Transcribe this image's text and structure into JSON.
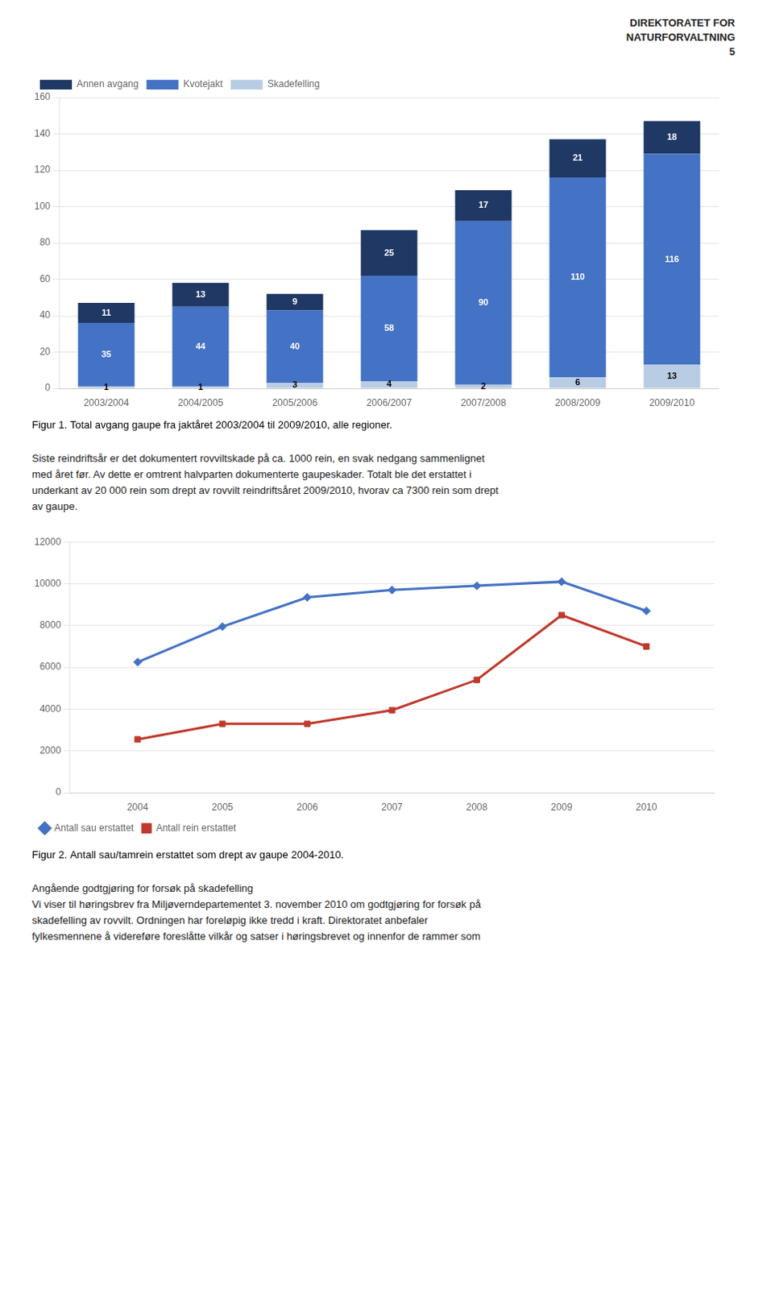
{
  "annotations": [
    "DIREKTORATET FOR",
    "NATURFORVALTNING",
    "5"
  ],
  "chart_data": [
    {
      "type": "bar",
      "title": "Figur 1. Total avgang gaupe fra jaktåret 2003/2004 til 2009/2010, alle regioner.",
      "categories": [
        "2003/2004",
        "2004/2005",
        "2005/2006",
        "2006/2007",
        "2007/2008",
        "2008/2009",
        "2009/2010"
      ],
      "series": [
        {
          "name": "Skadefelling",
          "color": "#b8cce4",
          "values": [
            1,
            1,
            3,
            4,
            2,
            6,
            13
          ]
        },
        {
          "name": "Kvotejakt",
          "color": "#4472c4",
          "values": [
            35,
            44,
            40,
            58,
            90,
            110,
            116
          ]
        },
        {
          "name": "Annen avgang",
          "color": "#1f3864",
          "values": [
            11,
            13,
            9,
            25,
            17,
            21,
            18
          ]
        }
      ],
      "stacked": true,
      "data_labels": true,
      "ylim": [
        0,
        160
      ],
      "yticks": [
        0,
        20,
        40,
        60,
        80,
        100,
        120,
        140,
        160
      ],
      "grid": "y",
      "legend": "upper left",
      "annotations": [
        "Siste reindriftsår er det dokumentert rovviltskade på ca. 1000 rein, en svak nedgang sammenlignet",
        "med året før. Av dette er omtrent halvparten dokumenterte gaupeskader. Totalt ble det erstattet i",
        "underkant av 20 000 rein som drept av rovvilt reindriftsåret 2009/2010, hvorav ca 7300 rein som drept",
        "av gaupe."
      ]
    },
    {
      "type": "line",
      "title": "Figur 2. Antall sau/tamrein erstattet som drept av gaupe 2004-2010.",
      "x": [
        2004,
        2005,
        2006,
        2007,
        2008,
        2009,
        2010
      ],
      "xlim": [
        2003.2,
        2010.8
      ],
      "xticks": [
        2004,
        2005,
        2006,
        2007,
        2008,
        2009,
        2010
      ],
      "series": [
        {
          "name": "Antall sau erstattet",
          "color": "#4472c4",
          "marker": "diamond",
          "values": [
            6250,
            7950,
            9350,
            9700,
            9900,
            10100,
            8700
          ]
        },
        {
          "name": "Antall rein erstattet",
          "color": "#c0392b",
          "marker": "square",
          "values": [
            2550,
            3300,
            3300,
            3950,
            5400,
            8500,
            7000
          ]
        }
      ],
      "ylim": [
        0,
        12000
      ],
      "yticks": [
        0,
        2000,
        4000,
        6000,
        8000,
        10000,
        12000
      ],
      "grid": "y",
      "legend": "lower left",
      "annotations": [
        "Angående godtgjøring for forsøk på skadefelling",
        "Vi viser til høringsbrev fra Miljøverndepartementet 3. november 2010 om godtgjøring for forsøk på",
        "skadefelling av rovvilt. Ordningen har foreløpig ikke tredd i kraft. Direktoratet anbefaler",
        "fylkesmennene å videreføre foreslåtte vilkår og satser i høringsbrevet og innenfor de rammer som"
      ]
    }
  ]
}
